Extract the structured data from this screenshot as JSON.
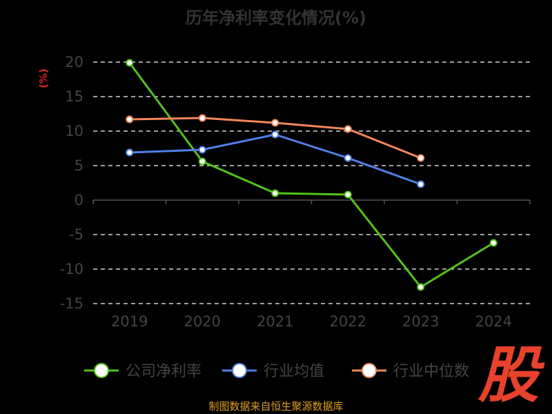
{
  "title": "历年净利率变化情况(%)",
  "source_text": "制图数据来自恒生聚源数据库",
  "logo_text": "股",
  "colors": {
    "background": "#000000",
    "grid": "#ffffff",
    "axis": "#555555",
    "tick_text": "#444444",
    "title": "#333333",
    "ylabel": "#d9231f",
    "source": "#e0a020",
    "logo": "#e8412c"
  },
  "chart_data": {
    "type": "line",
    "title": "历年净利率变化情况(%)",
    "xlabel": "",
    "ylabel": "(%)",
    "categories": [
      "2019",
      "2020",
      "2021",
      "2022",
      "2023",
      "2024"
    ],
    "ylim": [
      -15,
      20
    ],
    "yticks": [
      20,
      15,
      10,
      5,
      0,
      -5,
      -10,
      -15
    ],
    "grid": true,
    "grid_style": "dashed",
    "legend_position": "bottom",
    "series": [
      {
        "name": "公司净利率",
        "color": "#52c41a",
        "values": [
          19.9,
          5.6,
          1.0,
          0.8,
          -12.6,
          -6.2
        ]
      },
      {
        "name": "行业均值",
        "color": "#4f81e8",
        "values": [
          6.9,
          7.3,
          9.5,
          6.1,
          2.3,
          null
        ]
      },
      {
        "name": "行业中位数",
        "color": "#f5875c",
        "values": [
          11.7,
          11.9,
          11.2,
          10.3,
          6.1,
          null
        ]
      }
    ]
  }
}
